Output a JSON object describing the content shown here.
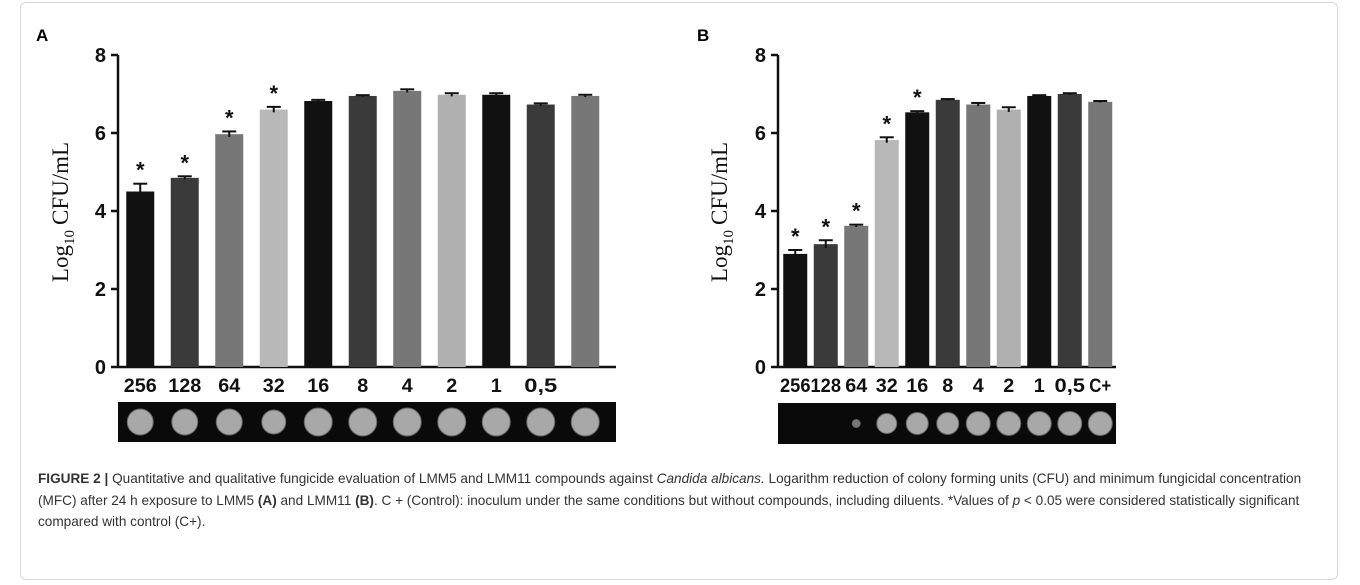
{
  "chart_data": [
    {
      "type": "bar",
      "panel": "A",
      "ylabel": [
        "Log",
        "10",
        "CFU/mL"
      ],
      "categories": [
        "256",
        "128",
        "64",
        "32",
        "16",
        "8",
        "4",
        "2",
        "1",
        "0,5",
        null
      ],
      "values": [
        4.5,
        4.85,
        5.97,
        6.6,
        6.82,
        6.95,
        7.08,
        6.98,
        6.98,
        6.73,
        6.95
      ],
      "errors": [
        0.2,
        0.04,
        0.07,
        0.07,
        0.03,
        0.02,
        0.04,
        0.04,
        0.04,
        0.03,
        0.03
      ],
      "colors": [
        "#111111",
        "#3a3a3a",
        "#777777",
        "#b8b8b8",
        "#111111",
        "#3a3a3a",
        "#777777",
        "#b0b0b0",
        "#111111",
        "#3a3a3a",
        "#777777"
      ],
      "significance": [
        "*",
        "*",
        "*",
        "*",
        null,
        null,
        null,
        null,
        null,
        null,
        null
      ],
      "ylim": [
        0,
        8
      ],
      "yticks": [
        0,
        2,
        4,
        6,
        8
      ]
    },
    {
      "type": "bar",
      "panel": "B",
      "ylabel": [
        "Log",
        "10",
        "CFU/mL"
      ],
      "categories": [
        "256",
        "128",
        "64",
        "32",
        "16",
        "8",
        "4",
        "2",
        "1",
        "0,5",
        "C+"
      ],
      "values": [
        2.9,
        3.15,
        3.62,
        5.82,
        6.53,
        6.85,
        6.73,
        6.6,
        6.95,
        7.0,
        6.8
      ],
      "errors": [
        0.1,
        0.1,
        0.03,
        0.07,
        0.03,
        0.02,
        0.04,
        0.06,
        0.02,
        0.02,
        0.02
      ],
      "colors": [
        "#111111",
        "#3a3a3a",
        "#777777",
        "#b8b8b8",
        "#111111",
        "#3a3a3a",
        "#777777",
        "#b0b0b0",
        "#111111",
        "#3a3a3a",
        "#777777"
      ],
      "significance": [
        "*",
        "*",
        "*",
        "*",
        "*",
        null,
        null,
        null,
        null,
        null,
        null
      ],
      "ylim": [
        0,
        8
      ],
      "yticks": [
        0,
        2,
        4,
        6,
        8
      ]
    }
  ],
  "caption": {
    "label": "FIGURE 2 |",
    "parts": [
      {
        "text": "Quantitative and qualitative fungicide evaluation of LMM5 and LMM11 compounds against ",
        "style": "normal"
      },
      {
        "text": "Candida albicans.",
        "style": "italic"
      },
      {
        "text": " Logarithm reduction of colony forming units (CFU) and minimum fungicidal concentration (MFC) after 24 h exposure to LMM5 ",
        "style": "normal"
      },
      {
        "text": "(A)",
        "style": "bold"
      },
      {
        "text": " and LMM11 ",
        "style": "normal"
      },
      {
        "text": "(B)",
        "style": "bold"
      },
      {
        "text": ". C + (Control): inoculum under the same conditions but without compounds, including diluents. *Values of ",
        "style": "normal"
      },
      {
        "text": "p",
        "style": "italic"
      },
      {
        "text": " < 0.05 were considered statistically significant compared with control (C+).",
        "style": "normal"
      }
    ]
  }
}
